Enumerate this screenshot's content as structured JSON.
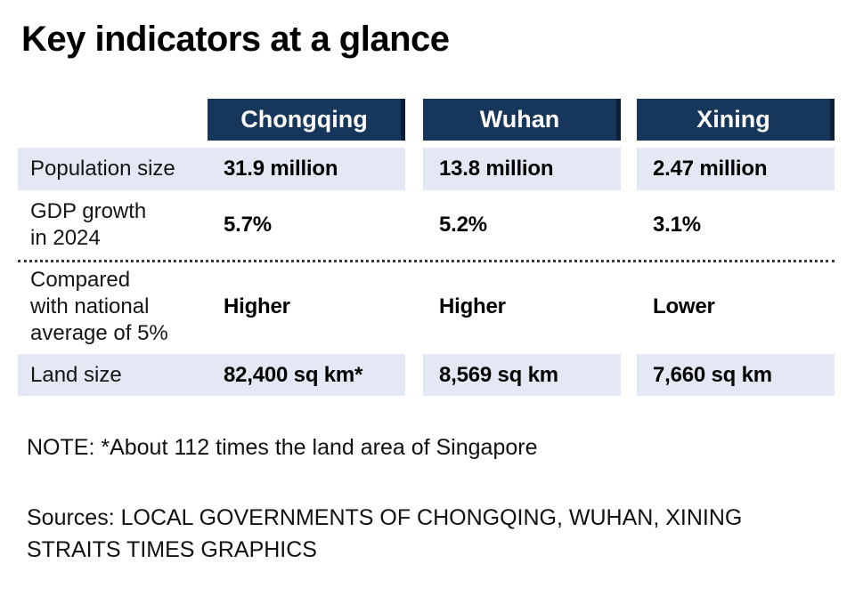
{
  "title": "Key indicators at a glance",
  "table": {
    "columns": [
      "Chongqing",
      "Wuhan",
      "Xining"
    ],
    "rows": [
      {
        "label": "Population size",
        "values": [
          "31.9 million",
          "13.8 million",
          "2.47 million"
        ]
      },
      {
        "label": "GDP growth\nin 2024",
        "values": [
          "5.7%",
          "5.2%",
          "3.1%"
        ]
      },
      {
        "label": "Compared\nwith national\naverage of 5%",
        "values": [
          "Higher",
          "Higher",
          "Lower"
        ]
      },
      {
        "label": "Land size",
        "values": [
          "82,400 sq km*",
          "8,569 sq km",
          "7,660 sq km"
        ]
      }
    ]
  },
  "note": "NOTE: *About 112 times the land area of Singapore",
  "sources": "Sources: LOCAL GOVERNMENTS OF CHONGQING, WUHAN, XINING\nSTRAITS TIMES GRAPHICS",
  "colors": {
    "header_bg": "#17365c",
    "header_edge": "#0b1e38",
    "row_shade": "#e4e8f4",
    "dot_line": "#3a3a3a",
    "text": "#000000"
  },
  "chart_data": {
    "type": "table",
    "title": "Key indicators at a glance",
    "columns": [
      "",
      "Chongqing",
      "Wuhan",
      "Xining"
    ],
    "rows": [
      [
        "Population size",
        "31.9 million",
        "13.8 million",
        "2.47 million"
      ],
      [
        "GDP growth in 2024",
        "5.7%",
        "5.2%",
        "3.1%"
      ],
      [
        "Compared with national average of 5%",
        "Higher",
        "Higher",
        "Lower"
      ],
      [
        "Land size",
        "82,400 sq km*",
        "8,569 sq km",
        "7,660 sq km"
      ]
    ],
    "note": "*About 112 times the land area of Singapore",
    "sources": [
      "LOCAL GOVERNMENTS OF CHONGQING, WUHAN, XINING",
      "STRAITS TIMES GRAPHICS"
    ]
  }
}
